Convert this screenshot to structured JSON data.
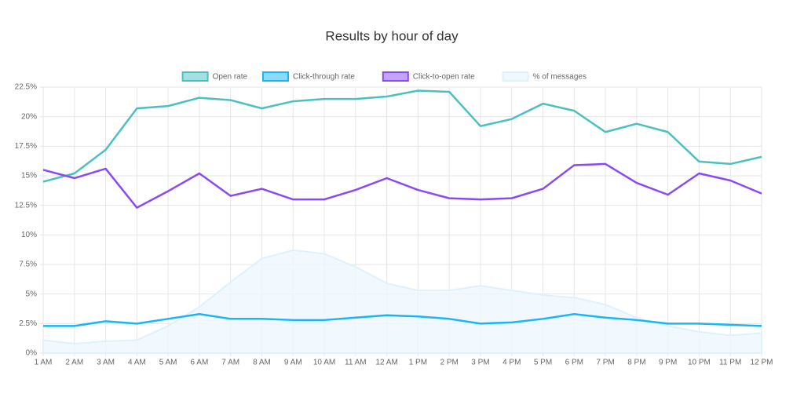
{
  "chart_data": {
    "type": "line",
    "title": "Results by hour of day",
    "categories": [
      "1 AM",
      "2 AM",
      "3 AM",
      "4 AM",
      "5 AM",
      "6 AM",
      "7 AM",
      "8 AM",
      "9 AM",
      "10 AM",
      "11 AM",
      "12 AM",
      "1 PM",
      "2 PM",
      "3 PM",
      "4 PM",
      "5 PM",
      "6 PM",
      "7 PM",
      "8 PM",
      "9 PM",
      "10 PM",
      "11 PM",
      "12 PM"
    ],
    "series": [
      {
        "name": "Open rate",
        "color": "#4bc0c0",
        "values": [
          14.5,
          15.2,
          17.2,
          20.7,
          20.9,
          21.6,
          21.4,
          20.7,
          21.3,
          21.5,
          21.5,
          21.7,
          22.2,
          22.1,
          19.2,
          19.8,
          21.1,
          20.5,
          18.7,
          19.4,
          18.7,
          16.2,
          16.0,
          16.6
        ]
      },
      {
        "name": "Click-through rate",
        "color": "#18b6f2",
        "values": [
          2.3,
          2.3,
          2.7,
          2.5,
          2.9,
          3.3,
          2.9,
          2.9,
          2.8,
          2.8,
          3.0,
          3.2,
          3.1,
          2.9,
          2.5,
          2.6,
          2.9,
          3.3,
          3.0,
          2.8,
          2.5,
          2.5,
          2.4,
          2.3
        ]
      },
      {
        "name": "Click-to-open rate",
        "color": "#8a4af3",
        "values": [
          15.5,
          14.8,
          15.6,
          12.3,
          13.7,
          15.2,
          13.3,
          13.9,
          13.0,
          13.0,
          13.8,
          14.8,
          13.8,
          13.1,
          13.0,
          13.1,
          13.9,
          15.9,
          16.0,
          14.4,
          13.4,
          15.2,
          14.6,
          13.5
        ]
      },
      {
        "name": "% of messages",
        "color": "#dff1fc",
        "fill": true,
        "values": [
          1.1,
          0.8,
          1.0,
          1.1,
          2.3,
          3.9,
          6.0,
          8.0,
          8.7,
          8.4,
          7.3,
          5.9,
          5.3,
          5.3,
          5.7,
          5.3,
          4.9,
          4.7,
          4.1,
          3.0,
          2.3,
          1.8,
          1.5,
          1.7
        ]
      }
    ],
    "ylim": [
      0,
      22.5
    ],
    "yticks": [
      {
        "value": 0,
        "label": "0%"
      },
      {
        "value": 2.5,
        "label": "2.5%"
      },
      {
        "value": 5,
        "label": "5%"
      },
      {
        "value": 7.5,
        "label": "7.5%"
      },
      {
        "value": 10,
        "label": "10%"
      },
      {
        "value": 12.5,
        "label": "12.5%"
      },
      {
        "value": 15,
        "label": "15%"
      },
      {
        "value": 17.5,
        "label": "17.5%"
      },
      {
        "value": 20,
        "label": "20%"
      },
      {
        "value": 22.5,
        "label": "22.5%"
      }
    ],
    "grid": true,
    "legend": "top"
  }
}
